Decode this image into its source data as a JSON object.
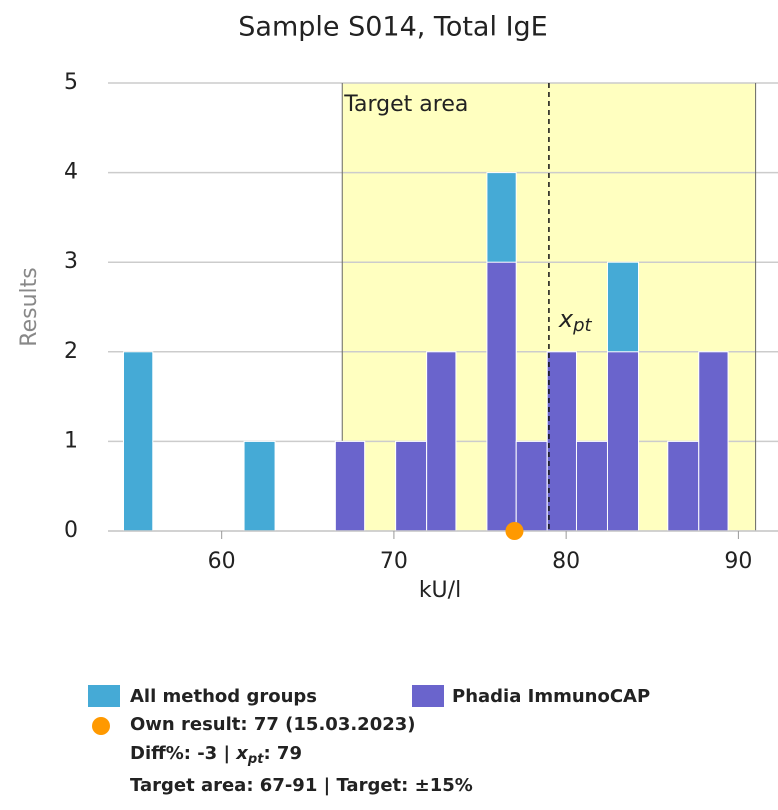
{
  "chart_data": {
    "type": "histogram",
    "title": "Sample S014, Total IgE",
    "x_label": "kU/l",
    "y_label": "Results",
    "bins": [
      54.3,
      56.0,
      57.8,
      59.6,
      61.3,
      63.1,
      64.8,
      66.6,
      68.3,
      70.1,
      71.9,
      73.6,
      75.4,
      77.1,
      78.9,
      80.6,
      82.4,
      84.2,
      85.9,
      87.7,
      89.4
    ],
    "series": [
      {
        "name": "All method groups",
        "color": "#45aad6",
        "values": [
          2,
          0,
          0,
          0,
          1,
          0,
          0,
          1,
          0,
          1,
          2,
          0,
          4,
          1,
          2,
          1,
          3,
          0,
          1,
          2
        ]
      },
      {
        "name": "Phadia ImmunoCAP",
        "color": "#6a64cc",
        "values": [
          0,
          0,
          0,
          0,
          0,
          0,
          0,
          1,
          0,
          1,
          2,
          0,
          3,
          1,
          2,
          1,
          2,
          0,
          1,
          2
        ]
      }
    ],
    "xlim": [
      53.4,
      92.3
    ],
    "ylim": [
      0,
      5
    ],
    "xticks": [
      60,
      70,
      80,
      90
    ],
    "yticks": [
      0,
      1,
      2,
      3,
      4,
      5
    ],
    "grid": true,
    "target_area": [
      67,
      91
    ],
    "target_area_label": "Target area",
    "target_color": "#ffffc0",
    "xpt": 79,
    "xpt_label": [
      "x",
      "pt"
    ],
    "own_result": 77,
    "own_color": "#ff9900",
    "legend": {
      "own": "Own result: 77 (15.03.2023)",
      "diff": [
        "Diff%: -3 | ",
        "x",
        "pt",
        ": 79"
      ],
      "target": "Target area: 67-91 | Target: ±15%"
    }
  }
}
